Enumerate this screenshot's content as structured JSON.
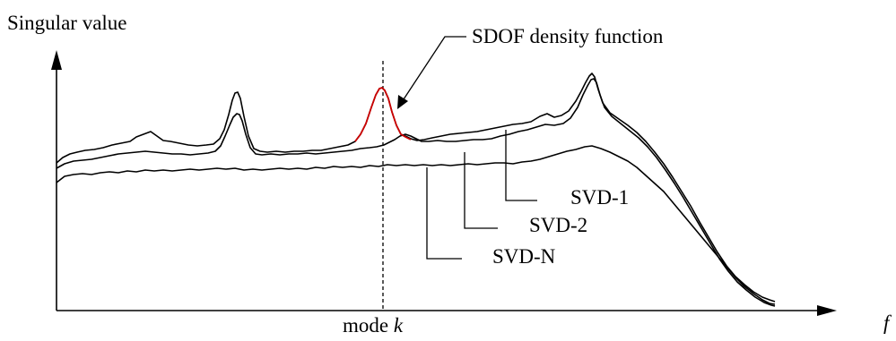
{
  "diagram": {
    "y_axis_label": "Singular value",
    "x_axis_label": "f",
    "mode_label_prefix": "mode ",
    "mode_label_var": "k",
    "callout_label": "SDOF density function",
    "series_labels": {
      "svd1": "SVD-1",
      "svd2": "SVD-2",
      "svdn": "SVD-N"
    },
    "colors": {
      "curves": "#000000",
      "sdof_highlight": "#cc0000"
    }
  }
}
